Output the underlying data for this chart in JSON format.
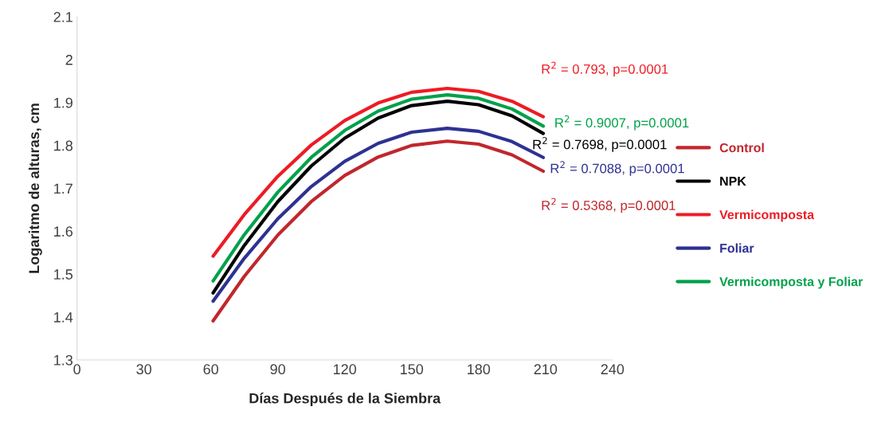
{
  "chart_data": {
    "type": "line",
    "xlabel": "Días Después de la Siembra",
    "ylabel": "Logaritmo de alturas, cm",
    "x": [
      61,
      75,
      90,
      105,
      120,
      135,
      150,
      166,
      180,
      195,
      209
    ],
    "series": [
      {
        "name": "Control",
        "color": "#c0272d",
        "values": [
          1.391,
          1.495,
          1.591,
          1.669,
          1.73,
          1.773,
          1.8,
          1.81,
          1.803,
          1.778,
          1.74
        ]
      },
      {
        "name": "NPK",
        "color": "#000000",
        "values": [
          1.456,
          1.567,
          1.669,
          1.752,
          1.817,
          1.864,
          1.893,
          1.903,
          1.895,
          1.869,
          1.828
        ]
      },
      {
        "name": "Vermicomposta",
        "color": "#ed1c24",
        "values": [
          1.542,
          1.639,
          1.728,
          1.801,
          1.858,
          1.899,
          1.924,
          1.933,
          1.926,
          1.903,
          1.867
        ]
      },
      {
        "name": "Foliar",
        "color": "#2e3192",
        "values": [
          1.437,
          1.537,
          1.629,
          1.704,
          1.763,
          1.805,
          1.831,
          1.84,
          1.833,
          1.809,
          1.772
        ]
      },
      {
        "name": "Vermicomposta y Foliar",
        "color": "#00a14b",
        "values": [
          1.484,
          1.592,
          1.691,
          1.772,
          1.835,
          1.88,
          1.908,
          1.918,
          1.91,
          1.885,
          1.845
        ]
      }
    ],
    "annotations": [
      "R$^{2}$ = 0.5368, p=0.0001",
      "R$^{2}$ = 0.7698, p=0.0001",
      "R$^{2}$ = 0.793, p=0.0001",
      "R$^{2}$ = 0.7088, p=0.0001",
      "R$^{2}$ = 0.9007, p=0.0001"
    ],
    "xlim": [
      0,
      240
    ],
    "xticks": [
      0,
      30,
      60,
      90,
      120,
      150,
      180,
      210,
      240
    ],
    "ylim": [
      1.3,
      2.1
    ],
    "yticks": [
      1.3,
      1.4,
      1.5,
      1.6,
      1.7,
      1.8,
      1.9,
      2,
      2.1
    ],
    "grid": false,
    "legend": "right",
    "marker": "none",
    "line_style": "solid"
  }
}
